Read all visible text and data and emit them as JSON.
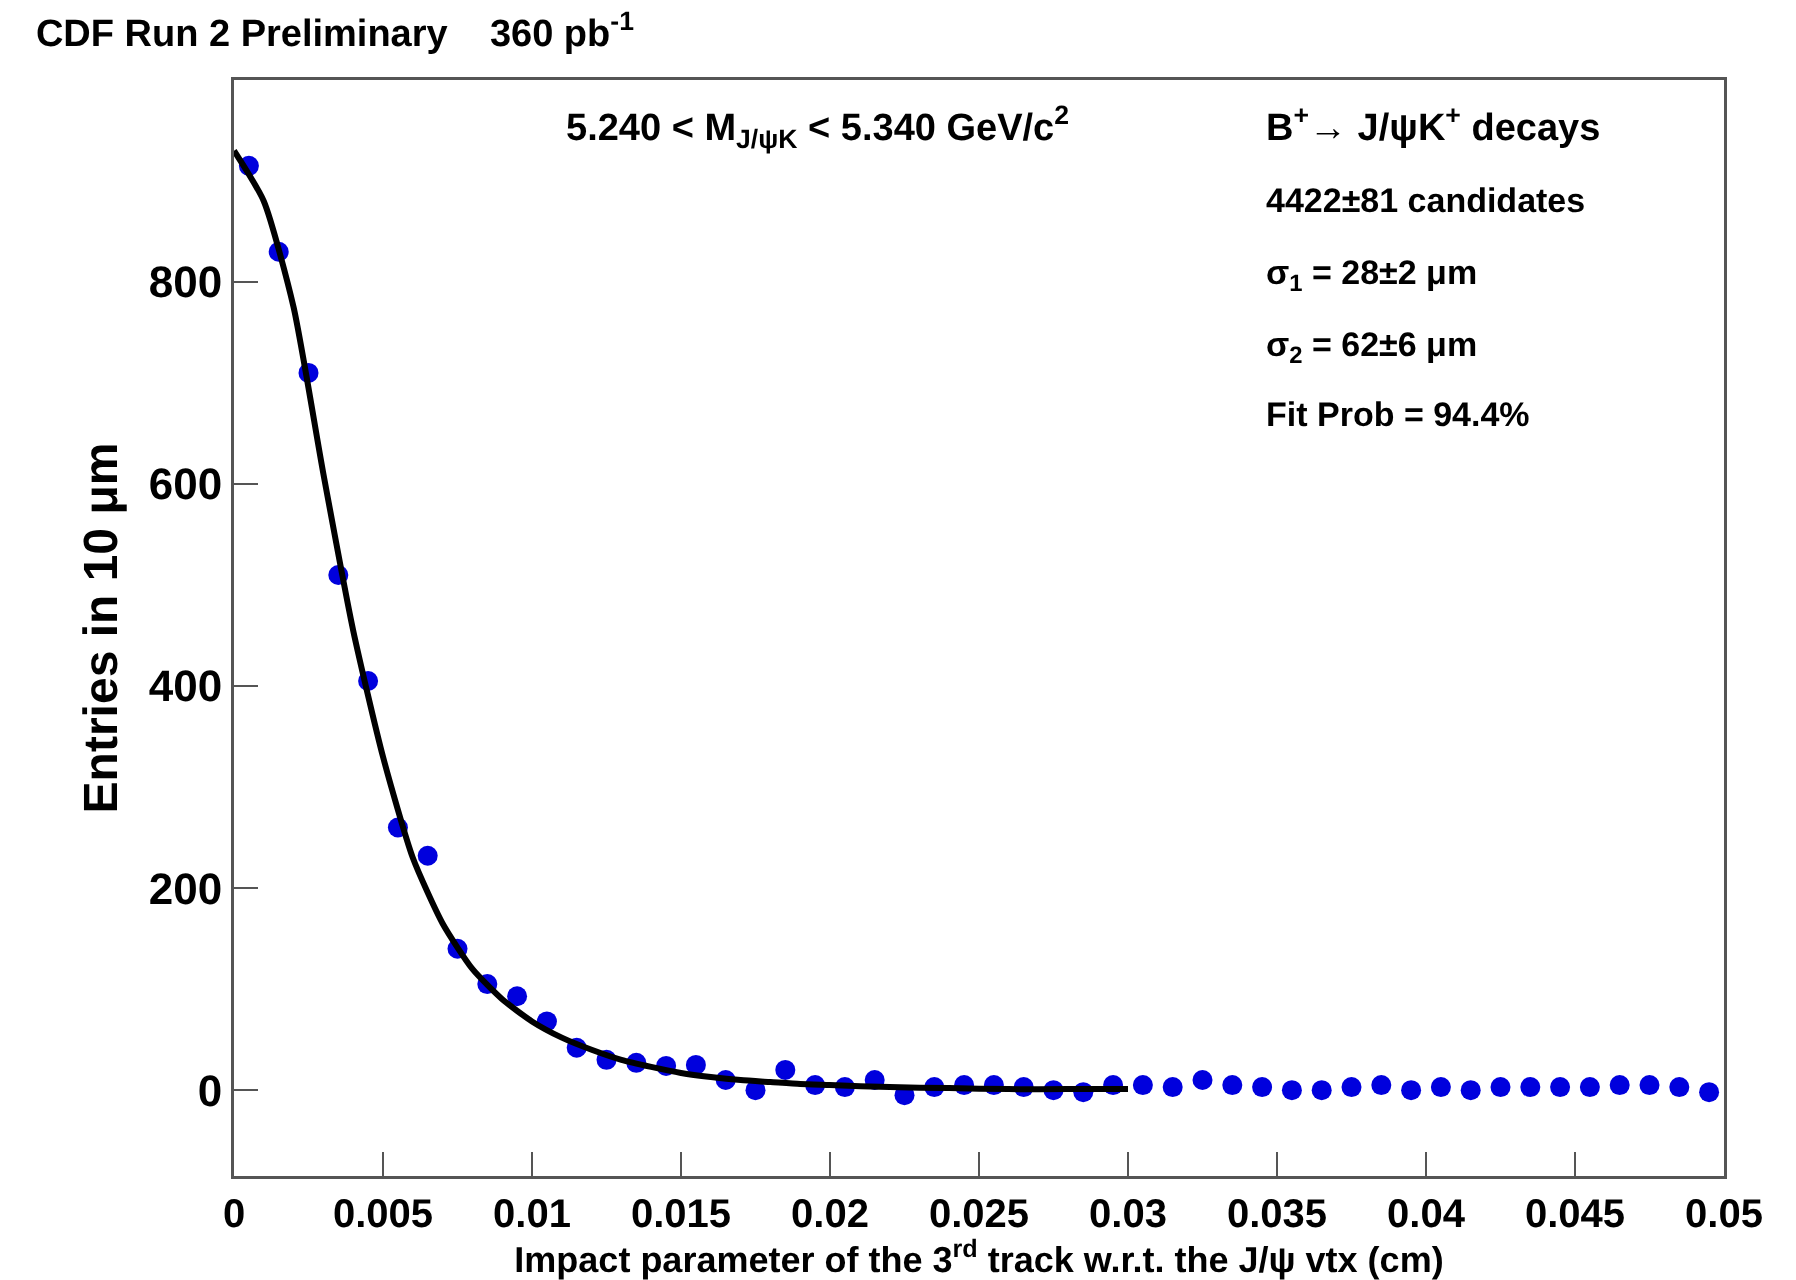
{
  "chart_data": {
    "type": "scatter",
    "title": "CDF Run 2 Preliminary    360 pb$^{-1}$",
    "xlabel": "Impact parameter of the 3$^{rd}$ track w.r.t. the J/ψ vtx (cm)",
    "ylabel": "Entries in 10 μm",
    "annotations": [
      "5.240 < M$_{J/ψK}$ < 5.340 GeV/c$^{2}$",
      "B$^{+}$→ J/ψK$^{+}$ decays",
      "4422±81 candidates",
      "σ$_{1}$ = 28±2 μm",
      "σ$_{2}$ = 62±6 μm",
      "Fit Prob = 94.4%"
    ],
    "xlim": [
      0,
      0.05
    ],
    "ylim": [
      -85,
      1000
    ],
    "xticks": [
      0,
      0.005,
      0.01,
      0.015,
      0.02,
      0.025,
      0.03,
      0.035,
      0.04,
      0.045,
      0.05
    ],
    "yticks": [
      0,
      200,
      400,
      600,
      800
    ],
    "grid": false,
    "series": [
      {
        "marker": "circle",
        "color": "#0000dd",
        "x": [
          0.0005,
          0.0015,
          0.0025,
          0.0035,
          0.0045,
          0.0055,
          0.0065,
          0.0075,
          0.0085,
          0.0095,
          0.0105,
          0.0115,
          0.0125,
          0.0135,
          0.0145,
          0.0155,
          0.0165,
          0.0175,
          0.0185,
          0.0195,
          0.0205,
          0.0215,
          0.0225,
          0.0235,
          0.0245,
          0.0255,
          0.0265,
          0.0275,
          0.0285,
          0.0295,
          0.0305,
          0.0315,
          0.0325,
          0.0335,
          0.0345,
          0.0355,
          0.0365,
          0.0375,
          0.0385,
          0.0395,
          0.0405,
          0.0415,
          0.0425,
          0.0435,
          0.0445,
          0.0455,
          0.0465,
          0.0475,
          0.0485,
          0.0495
        ],
        "values": [
          915,
          830,
          710,
          510,
          405,
          260,
          232,
          140,
          105,
          93,
          68,
          42,
          30,
          27,
          24,
          25,
          10,
          0,
          20,
          5,
          3,
          10,
          -5,
          3,
          5,
          5,
          3,
          0,
          -2,
          5,
          5,
          3,
          10,
          5,
          3,
          0,
          0,
          3,
          5,
          0,
          3,
          0,
          3,
          3,
          3,
          3,
          5,
          5,
          3,
          -2
        ]
      },
      {
        "type": "line",
        "marker": "none",
        "color": "#000000",
        "x": [
          0,
          0.001,
          0.002,
          0.003,
          0.004,
          0.005,
          0.006,
          0.007,
          0.008,
          0.009,
          0.01,
          0.011,
          0.012,
          0.013,
          0.014,
          0.015,
          0.016,
          0.017,
          0.018,
          0.019,
          0.02,
          0.022,
          0.024,
          0.026,
          0.028,
          0.03
        ],
        "values": [
          930,
          880,
          775,
          610,
          455,
          330,
          230,
          165,
          120,
          90,
          68,
          52,
          40,
          30,
          23,
          17,
          13,
          10,
          8,
          6,
          5,
          3,
          2,
          1,
          1,
          1
        ]
      }
    ]
  }
}
